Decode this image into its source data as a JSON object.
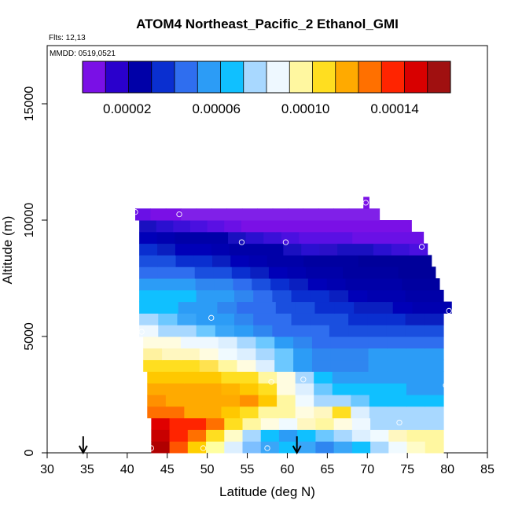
{
  "chart_data": {
    "type": "heatmap",
    "title": "ATOM4 Northeast_Pacific_2 Ethanol_GMI",
    "flights": "Flts: 12,13",
    "dates": "MMDD: 0519,0521",
    "xlabel": "Latitude (deg N)",
    "ylabel": "Altitude (m)",
    "xlim": [
      30,
      85
    ],
    "ylim": [
      0,
      17500
    ],
    "x_ticks": [
      "30",
      "35",
      "40",
      "45",
      "50",
      "55",
      "60",
      "65",
      "70",
      "75",
      "80",
      "85"
    ],
    "y_ticks": [
      "0",
      "5000",
      "10000",
      "15000"
    ],
    "colorbar": {
      "min": 0.0,
      "max": 0.000165,
      "tick_labels": [
        "0.00002",
        "0.00006",
        "0.00010",
        "0.00014"
      ],
      "tick_values": [
        2e-05,
        6e-05,
        0.0001,
        0.00014
      ],
      "colors": [
        "#7a10e6",
        "#2a00cc",
        "#0000a8",
        "#0a2fd0",
        "#2f6eef",
        "#2c9cf6",
        "#10c0ff",
        "#a8d8ff",
        "#eef8ff",
        "#fff7a0",
        "#ffde20",
        "#ffaa00",
        "#ff7000",
        "#ff2400",
        "#d80000",
        "#a01010"
      ]
    },
    "rows": [
      {
        "alt": [
          0,
          500
        ],
        "lat_min": 43,
        "lat_max": 79.5,
        "colors": [
          "#b00000",
          "#ff5500",
          "#ffcf00",
          "#ffffa0",
          "#dcefff",
          "#7dbfff",
          "#3aa6f8",
          "#10c0ff",
          "#3aa6f8",
          "#2f86f0",
          "#3aa6f8",
          "#10c0ff",
          "#a8d8ff",
          "#f0faff",
          "#fffcc8",
          "#fff7a0"
        ]
      },
      {
        "alt": [
          500,
          1000
        ],
        "lat_min": 43,
        "lat_max": 79.5,
        "colors": [
          "#c80000",
          "#ff2400",
          "#ff7000",
          "#ffde20",
          "#fffcc8",
          "#a8d8ff",
          "#10c0ff",
          "#2c9cf6",
          "#10c0ff",
          "#6cc8ff",
          "#a8d8ff",
          "#dcefff",
          "#f0faff",
          "#fff7c0",
          "#fff7a0",
          "#fff7a0"
        ]
      },
      {
        "alt": [
          1000,
          1500
        ],
        "lat_min": 43,
        "lat_max": 79.5,
        "colors": [
          "#e00000",
          "#ff2400",
          "#ff2400",
          "#ff7000",
          "#ffde20",
          "#fff7a0",
          "#fffce0",
          "#f0faff",
          "#fff7c0",
          "#fff7a0",
          "#fffce0",
          "#eef8ff",
          "#a8d8ff",
          "#a8d8ff",
          "#a8d8ff",
          "#a8d8ff"
        ]
      },
      {
        "alt": [
          1500,
          2000
        ],
        "lat_min": 42.5,
        "lat_max": 79.5,
        "colors": [
          "#ff7000",
          "#ff7000",
          "#ffaa00",
          "#ffaa00",
          "#ffc800",
          "#ffde20",
          "#fff7a0",
          "#fff7a0",
          "#fffce0",
          "#fff7c0",
          "#ffde20",
          "#dcefff",
          "#a8d8ff",
          "#a8d8ff",
          "#a8d8ff",
          "#a8d8ff"
        ]
      },
      {
        "alt": [
          2000,
          2500
        ],
        "lat_min": 42.5,
        "lat_max": 79.5,
        "colors": [
          "#ff9000",
          "#ffaa00",
          "#ffaa00",
          "#ffaa00",
          "#ffaa00",
          "#ff9000",
          "#ffc800",
          "#fff7a0",
          "#f0faff",
          "#a8d8ff",
          "#a8d8ff",
          "#6cc8ff",
          "#10c0ff",
          "#10c0ff",
          "#10c0ff",
          "#10c0ff"
        ]
      },
      {
        "alt": [
          2500,
          3000
        ],
        "lat_min": 42.5,
        "lat_max": 79.5,
        "colors": [
          "#ffaa00",
          "#ffaa00",
          "#ffaa00",
          "#ffaa00",
          "#ffb400",
          "#ffc800",
          "#ffde20",
          "#fffce0",
          "#dcefff",
          "#6cc8ff",
          "#10c0ff",
          "#10c0ff",
          "#10c0ff",
          "#10c0ff",
          "#2c9cf6",
          "#2c9cf6"
        ]
      },
      {
        "alt": [
          3000,
          3500
        ],
        "lat_min": 42.5,
        "lat_max": 79.5,
        "colors": [
          "#ffc800",
          "#ffc800",
          "#ffc800",
          "#ffc800",
          "#ffde20",
          "#ffde20",
          "#fff7a0",
          "#fffce0",
          "#a8d8ff",
          "#10c0ff",
          "#2c9cf6",
          "#2c9cf6",
          "#2c9cf6",
          "#2c9cf6",
          "#2c9cf6",
          "#2c9cf6"
        ]
      },
      {
        "alt": [
          3500,
          4000
        ],
        "lat_min": 42,
        "lat_max": 79.5,
        "colors": [
          "#ffde20",
          "#ffde20",
          "#ffde20",
          "#ffe250",
          "#fff7a0",
          "#fffce0",
          "#dcefff",
          "#6cc8ff",
          "#2c9cf6",
          "#2f86f0",
          "#2f86f0",
          "#2f86f0",
          "#2c9cf6",
          "#2c9cf6",
          "#2c9cf6",
          "#2c9cf6"
        ]
      },
      {
        "alt": [
          4000,
          4500
        ],
        "lat_min": 42,
        "lat_max": 79.5,
        "colors": [
          "#fff2a0",
          "#fff7c0",
          "#fff7c0",
          "#fffce0",
          "#f0faff",
          "#dcefff",
          "#a8d8ff",
          "#6cc8ff",
          "#2c9cf6",
          "#2f86f0",
          "#2f86f0",
          "#2f86f0",
          "#2c9cf6",
          "#2c9cf6",
          "#2c9cf6",
          "#2c9cf6"
        ]
      },
      {
        "alt": [
          4500,
          5000
        ],
        "lat_min": 42,
        "lat_max": 79.5,
        "colors": [
          "#fffce0",
          "#fffce0",
          "#eef8ff",
          "#eef8ff",
          "#dcefff",
          "#a8d8ff",
          "#6cc8ff",
          "#2c9cf6",
          "#2f86f0",
          "#2f6eef",
          "#2f6eef",
          "#2f6eef",
          "#2f6eef",
          "#2f6eef",
          "#2f6eef",
          "#2f6eef"
        ]
      },
      {
        "alt": [
          5000,
          5500
        ],
        "lat_min": 41.5,
        "lat_max": 79.5,
        "colors": [
          "#eef8ff",
          "#a8d8ff",
          "#a8d8ff",
          "#6cc8ff",
          "#3aa6f8",
          "#2c9cf6",
          "#2f86f0",
          "#2f6eef",
          "#2f6eef",
          "#2f6eef",
          "#1a4fdf",
          "#1a4fdf",
          "#1a4fdf",
          "#1a4fdf",
          "#1a4fdf",
          "#1a4fdf"
        ]
      },
      {
        "alt": [
          5500,
          6000
        ],
        "lat_min": 41.5,
        "lat_max": 79.5,
        "colors": [
          "#a8d8ff",
          "#6cc8ff",
          "#3aa6f8",
          "#2c9cf6",
          "#2c9cf6",
          "#2f86f0",
          "#2f6eef",
          "#2f6eef",
          "#1a4fdf",
          "#1a4fdf",
          "#1a4fdf",
          "#0a2fd0",
          "#0a2fd0",
          "#0a2fd0",
          "#0a1fc0",
          "#0a1fc0"
        ]
      },
      {
        "alt": [
          6000,
          6500
        ],
        "lat_min": 41.5,
        "lat_max": 80.5,
        "colors": [
          "#10c0ff",
          "#10c0ff",
          "#2c9cf6",
          "#2c9cf6",
          "#2f86f0",
          "#2f6eef",
          "#2f6eef",
          "#1a4fdf",
          "#1a4fdf",
          "#0a2fd0",
          "#0a2fd0",
          "#0a1fc0",
          "#0a1fc0",
          "#0000b8",
          "#0000b0",
          "#0000b0"
        ]
      },
      {
        "alt": [
          6500,
          7000
        ],
        "lat_min": 41.5,
        "lat_max": 79.5,
        "colors": [
          "#10c0ff",
          "#10c0ff",
          "#10c0ff",
          "#2c9cf6",
          "#2c9cf6",
          "#2f86f0",
          "#2f6eef",
          "#1a4fdf",
          "#0a2fd0",
          "#0a2fd0",
          "#0a1fc0",
          "#0000b8",
          "#0000b0",
          "#0000b0",
          "#0000a8",
          "#0000a8"
        ]
      },
      {
        "alt": [
          7000,
          7500
        ],
        "lat_min": 41.5,
        "lat_max": 79,
        "colors": [
          "#2c9cf6",
          "#2c9cf6",
          "#2c9cf6",
          "#2f86f0",
          "#2f86f0",
          "#2f6eef",
          "#1a4fdf",
          "#0a2fd0",
          "#0a1fc0",
          "#0000b8",
          "#0000b0",
          "#0000a8",
          "#0000a8",
          "#0000a8",
          "#0000a0",
          "#0000a0"
        ]
      },
      {
        "alt": [
          7500,
          8000
        ],
        "lat_min": 41.5,
        "lat_max": 78.5,
        "colors": [
          "#2f6eef",
          "#2f6eef",
          "#2f6eef",
          "#1a4fdf",
          "#1a4fdf",
          "#0a2fd0",
          "#0a1fc0",
          "#0000b8",
          "#0000b0",
          "#0000a8",
          "#0000a8",
          "#0000a0",
          "#0000a0",
          "#0000a0",
          "#00009a",
          "#00009a"
        ]
      },
      {
        "alt": [
          8000,
          8500
        ],
        "lat_min": 41.5,
        "lat_max": 78,
        "colors": [
          "#1a4fdf",
          "#1a4fdf",
          "#0a2fd0",
          "#0a2fd0",
          "#0a1fc0",
          "#0000b8",
          "#0000b0",
          "#0000a8",
          "#0000a8",
          "#0000a0",
          "#0000a0",
          "#0000a0",
          "#00009a",
          "#00009a",
          "#00009a",
          "#00009a"
        ]
      },
      {
        "alt": [
          8500,
          9000
        ],
        "lat_min": 41.5,
        "lat_max": 77.5,
        "colors": [
          "#0a2fd0",
          "#0a1fc0",
          "#0000b8",
          "#0000b8",
          "#0000b0",
          "#0000a8",
          "#0000a8",
          "#0000a8",
          "#1a10c0",
          "#2a10d0",
          "#2a10c8",
          "#1a10c0",
          "#1a10c0",
          "#2a10d0",
          "#3a10d8",
          "#4a10e0"
        ]
      },
      {
        "alt": [
          9000,
          9500
        ],
        "lat_min": 41.5,
        "lat_max": 77,
        "colors": [
          "#0000b8",
          "#0000b0",
          "#0000a8",
          "#0000a8",
          "#0000a8",
          "#1a10c0",
          "#2a10d0",
          "#3a10d8",
          "#4a10e0",
          "#5a10e4",
          "#5a10e4",
          "#5a10e4",
          "#6a10e6",
          "#6a10e6",
          "#6a10e6",
          "#6a10e6"
        ]
      },
      {
        "alt": [
          9500,
          10000
        ],
        "lat_min": 41.5,
        "lat_max": 75.5,
        "colors": [
          "#1a10c0",
          "#2a10d0",
          "#3a10d8",
          "#4a10e0",
          "#5a10e4",
          "#6a10e6",
          "#7a10e6",
          "#7a10e6",
          "#7a10e6",
          "#7a10e6",
          "#7a10e6",
          "#7a10e6",
          "#7a10e6",
          "#7a10e6",
          "#7a10e6",
          "#7a10e6"
        ]
      },
      {
        "alt": [
          10000,
          10500
        ],
        "lat_min": 41,
        "lat_max": 71.5,
        "colors": [
          "#6a10e6",
          "#7a10e6",
          "#7a10e6",
          "#8020e8",
          "#8020e8",
          "#8020e8",
          "#8020e8",
          "#8020e8",
          "#8020e8",
          "#8020e8",
          "#8020e8",
          "#8020e8",
          "#8020e8",
          "#8020e8",
          "#8020e8",
          "#8020e8"
        ]
      },
      {
        "alt": [
          10500,
          11000
        ],
        "lat_min": 69.5,
        "lat_max": 70.2,
        "colors": [
          "#7a10e6"
        ]
      }
    ],
    "sample_points": [
      {
        "lat": 41.0,
        "alt": 10350
      },
      {
        "lat": 46.5,
        "alt": 10250
      },
      {
        "lat": 54.3,
        "alt": 9050
      },
      {
        "lat": 59.8,
        "alt": 9050
      },
      {
        "lat": 69.8,
        "alt": 10750
      },
      {
        "lat": 76.8,
        "alt": 8850
      },
      {
        "lat": 80.2,
        "alt": 6100
      },
      {
        "lat": 50.5,
        "alt": 5800
      },
      {
        "lat": 41.8,
        "alt": 5200
      },
      {
        "lat": 58.0,
        "alt": 3050
      },
      {
        "lat": 62.0,
        "alt": 3150
      },
      {
        "lat": 79.8,
        "alt": 2900
      },
      {
        "lat": 74.0,
        "alt": 1300
      },
      {
        "lat": 43.0,
        "alt": 200
      },
      {
        "lat": 49.5,
        "alt": 200
      },
      {
        "lat": 57.5,
        "alt": 200
      }
    ],
    "arrows": [
      {
        "lat": 34.5
      },
      {
        "lat": 61.2
      }
    ]
  }
}
